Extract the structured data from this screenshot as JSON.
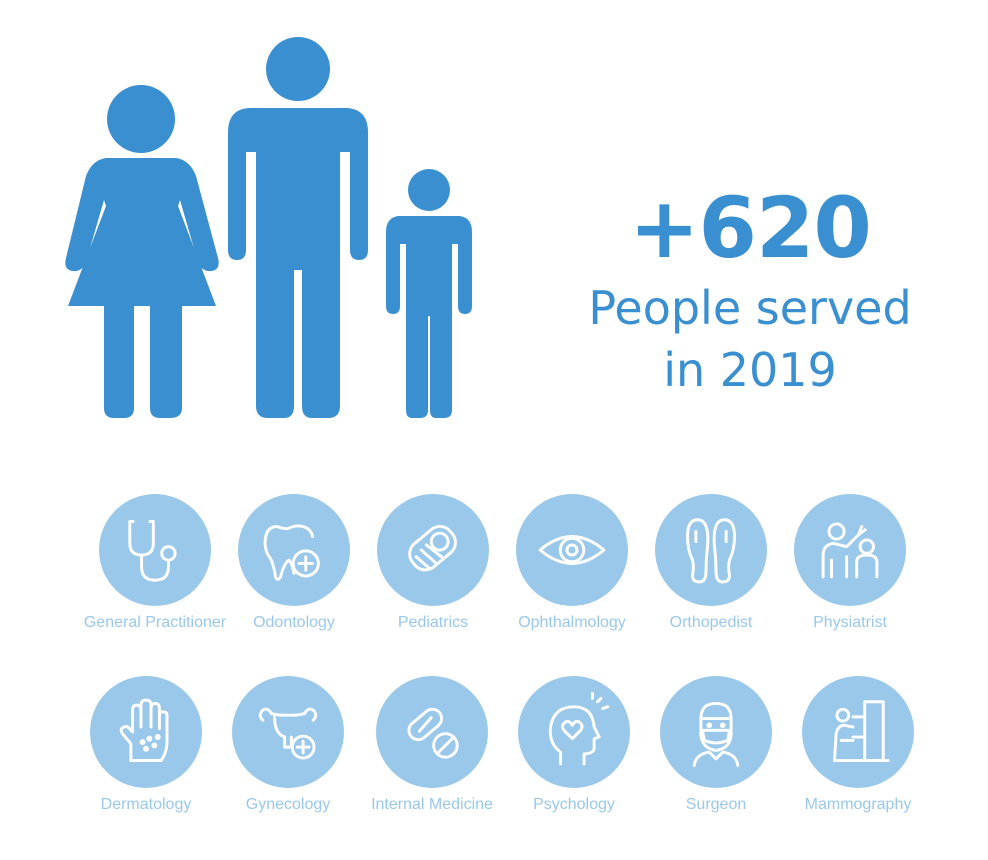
{
  "colors": {
    "primary": "#3a8fd0",
    "circle": "#9ac8ea",
    "label": "#9ac8ea",
    "icon_stroke": "#ffffff"
  },
  "family_icon": "family-woman-man-child-icon",
  "stat": {
    "number": "+620",
    "label_line1": "People served",
    "label_line2": "in 2019"
  },
  "specialties": [
    {
      "label": "General Practitioner",
      "icon": "stethoscope-icon"
    },
    {
      "label": "Odontology",
      "icon": "tooth-icon"
    },
    {
      "label": "Pediatrics",
      "icon": "baby-icon"
    },
    {
      "label": "Ophthalmology",
      "icon": "eye-icon"
    },
    {
      "label": "Orthopedist",
      "icon": "insoles-icon"
    },
    {
      "label": "Physiatrist",
      "icon": "physiotherapy-icon"
    },
    {
      "label": "Dermatology",
      "icon": "hand-skin-icon"
    },
    {
      "label": "Gynecology",
      "icon": "uterus-icon"
    },
    {
      "label": "Internal Medicine",
      "icon": "pills-icon"
    },
    {
      "label": "Psychology",
      "icon": "head-heart-icon"
    },
    {
      "label": "Surgeon",
      "icon": "surgeon-icon"
    },
    {
      "label": "Mammography",
      "icon": "mammography-machine-icon"
    }
  ]
}
